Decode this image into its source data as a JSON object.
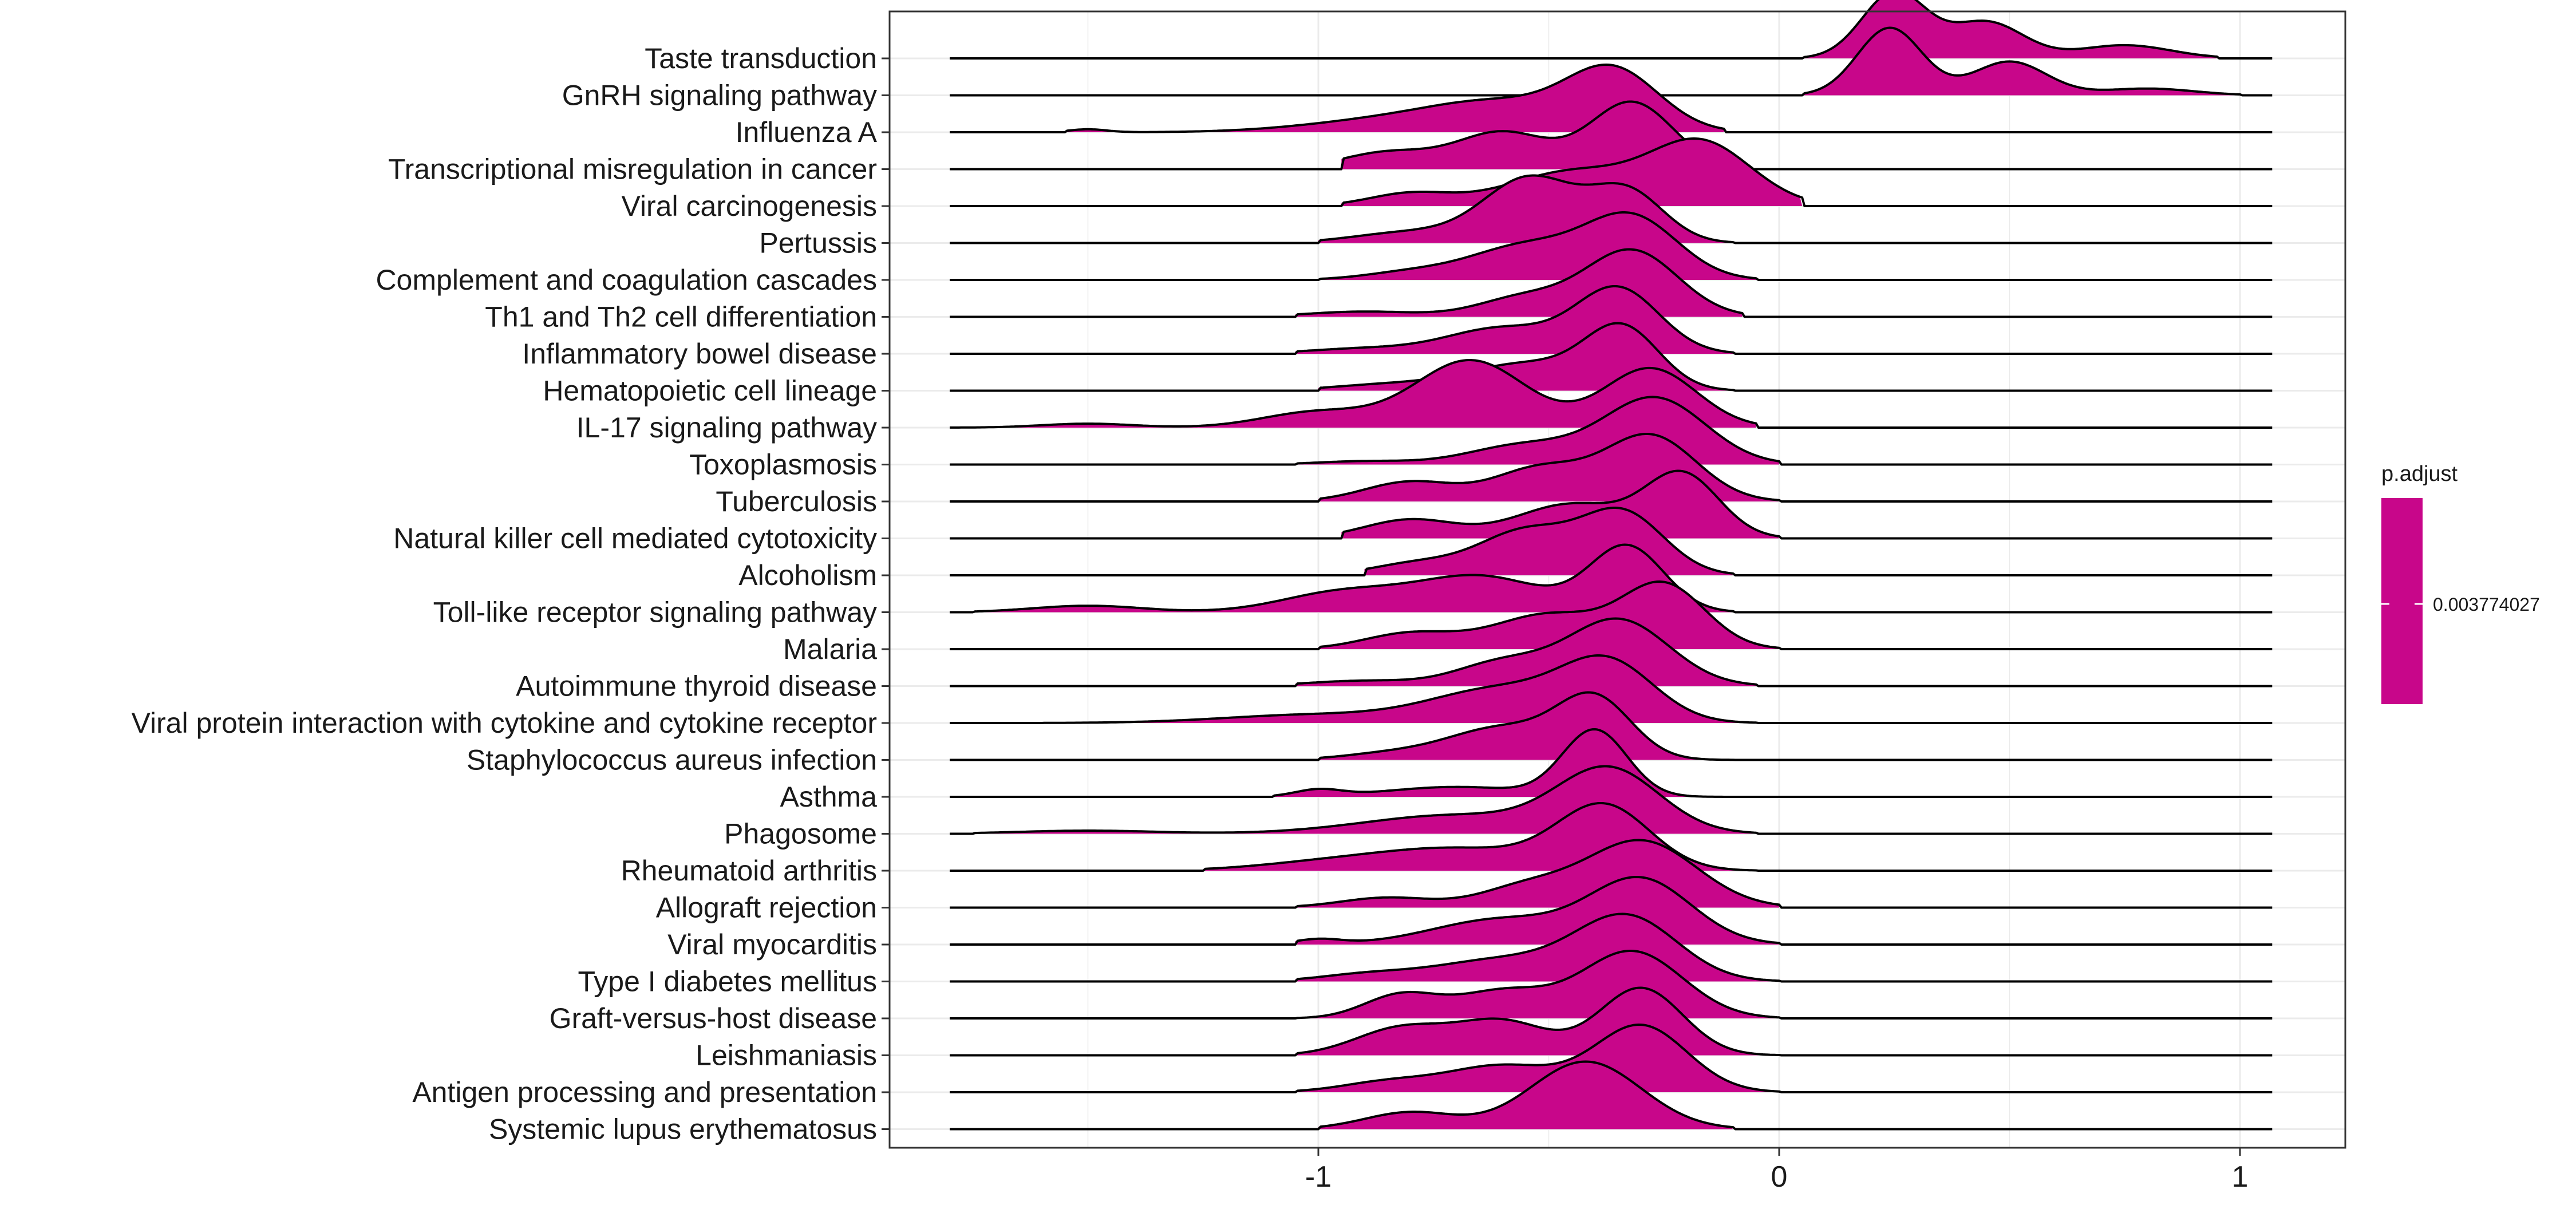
{
  "colors": {
    "fill": "#c8068a",
    "line": "#000000",
    "grid": "#ebebeb",
    "panel_border": "#333333",
    "background": "#ffffff"
  },
  "legend": {
    "title": "p.adjust",
    "label": "0.003774027",
    "color": "#c8068a",
    "placement": "right"
  },
  "chart_data": {
    "type": "ridgeline",
    "title": "",
    "xlabel": "",
    "ylabel": "",
    "xlim": [
      -1.95,
      1.2
    ],
    "x_ticks": [
      -1,
      0,
      1
    ],
    "x_tick_labels": [
      "-1",
      "0",
      "1"
    ],
    "grid": true,
    "categories": [
      "Taste transduction",
      "GnRH signaling pathway",
      "Influenza A",
      "Transcriptional misregulation in cancer",
      "Viral carcinogenesis",
      "Pertussis",
      "Complement and coagulation cascades",
      "Th1 and Th2 cell differentiation",
      "Inflammatory bowel disease",
      "Hematopoietic cell lineage",
      "IL-17 signaling pathway",
      "Toxoplasmosis",
      "Tuberculosis",
      "Natural killer cell mediated cytotoxicity",
      "Alcoholism",
      "Toll-like receptor signaling pathway",
      "Malaria",
      "Autoimmune thyroid disease",
      "Viral protein interaction with cytokine and cytokine receptor",
      "Staphylococcus aureus infection",
      "Asthma",
      "Phagosome",
      "Rheumatoid arthritis",
      "Allograft rejection",
      "Viral myocarditis",
      "Type I diabetes mellitus",
      "Graft-versus-host disease",
      "Leishmaniasis",
      "Antigen processing and presentation",
      "Systemic lupus erythematosus"
    ],
    "line_range": [
      -1.8,
      1.07
    ],
    "series": [
      {
        "range": [
          0.05,
          0.95
        ],
        "peaks": [
          [
            0.25,
            0.07,
            1.0
          ],
          [
            0.45,
            0.08,
            0.55
          ],
          [
            0.75,
            0.1,
            0.2
          ]
        ]
      },
      {
        "range": [
          0.05,
          1.0
        ],
        "peaks": [
          [
            0.24,
            0.07,
            1.0
          ],
          [
            0.5,
            0.08,
            0.5
          ],
          [
            0.8,
            0.1,
            0.1
          ]
        ]
      },
      {
        "range": [
          -1.55,
          -0.12
        ],
        "peaks": [
          [
            -0.36,
            0.1,
            1.0
          ],
          [
            -0.6,
            0.15,
            0.45
          ],
          [
            -0.85,
            0.18,
            0.2
          ],
          [
            -1.5,
            0.04,
            0.05
          ]
        ]
      },
      {
        "range": [
          -0.95,
          -0.12
        ],
        "peaks": [
          [
            -0.32,
            0.09,
            1.0
          ],
          [
            -0.6,
            0.1,
            0.55
          ],
          [
            -0.85,
            0.1,
            0.25
          ]
        ]
      },
      {
        "range": [
          -0.95,
          0.05
        ],
        "peaks": [
          [
            -0.17,
            0.11,
            1.0
          ],
          [
            -0.45,
            0.14,
            0.55
          ],
          [
            -0.8,
            0.09,
            0.2
          ]
        ]
      },
      {
        "range": [
          -1.0,
          -0.1
        ],
        "peaks": [
          [
            -0.54,
            0.1,
            0.9
          ],
          [
            -0.33,
            0.08,
            0.7
          ],
          [
            -0.8,
            0.12,
            0.15
          ]
        ]
      },
      {
        "range": [
          -1.0,
          -0.05
        ],
        "peaks": [
          [
            -0.32,
            0.1,
            1.0
          ],
          [
            -0.55,
            0.12,
            0.55
          ],
          [
            -0.8,
            0.1,
            0.12
          ]
        ]
      },
      {
        "range": [
          -1.05,
          -0.08
        ],
        "peaks": [
          [
            -0.32,
            0.1,
            1.0
          ],
          [
            -0.55,
            0.1,
            0.3
          ],
          [
            -0.9,
            0.12,
            0.08
          ]
        ]
      },
      {
        "range": [
          -1.05,
          -0.1
        ],
        "peaks": [
          [
            -0.35,
            0.09,
            1.0
          ],
          [
            -0.6,
            0.12,
            0.4
          ],
          [
            -0.9,
            0.12,
            0.08
          ]
        ]
      },
      {
        "range": [
          -1.0,
          -0.1
        ],
        "peaks": [
          [
            -0.34,
            0.08,
            1.0
          ],
          [
            -0.55,
            0.13,
            0.45
          ],
          [
            -0.85,
            0.12,
            0.1
          ]
        ]
      },
      {
        "range": [
          -1.8,
          -0.05
        ],
        "peaks": [
          [
            -0.67,
            0.12,
            0.85
          ],
          [
            -0.28,
            0.1,
            0.75
          ],
          [
            -1.0,
            0.12,
            0.2
          ],
          [
            -1.5,
            0.1,
            0.05
          ]
        ]
      },
      {
        "range": [
          -1.05,
          0.0
        ],
        "peaks": [
          [
            -0.27,
            0.11,
            1.0
          ],
          [
            -0.55,
            0.12,
            0.3
          ],
          [
            -0.9,
            0.1,
            0.05
          ]
        ]
      },
      {
        "range": [
          -1.0,
          0.0
        ],
        "peaks": [
          [
            -0.28,
            0.1,
            1.0
          ],
          [
            -0.52,
            0.1,
            0.5
          ],
          [
            -0.8,
            0.1,
            0.3
          ]
        ]
      },
      {
        "range": [
          -0.95,
          0.0
        ],
        "peaks": [
          [
            -0.21,
            0.08,
            1.0
          ],
          [
            -0.45,
            0.12,
            0.55
          ],
          [
            -0.8,
            0.1,
            0.3
          ]
        ]
      },
      {
        "range": [
          -0.9,
          -0.1
        ],
        "peaks": [
          [
            -0.34,
            0.09,
            1.0
          ],
          [
            -0.55,
            0.1,
            0.7
          ],
          [
            -0.78,
            0.1,
            0.2
          ]
        ]
      },
      {
        "range": [
          -1.75,
          -0.1
        ],
        "peaks": [
          [
            -0.33,
            0.08,
            1.0
          ],
          [
            -0.65,
            0.14,
            0.55
          ],
          [
            -0.95,
            0.13,
            0.3
          ],
          [
            -1.5,
            0.12,
            0.1
          ]
        ]
      },
      {
        "range": [
          -1.0,
          0.0
        ],
        "peaks": [
          [
            -0.25,
            0.09,
            1.0
          ],
          [
            -0.5,
            0.12,
            0.55
          ],
          [
            -0.8,
            0.1,
            0.25
          ]
        ]
      },
      {
        "range": [
          -1.05,
          -0.05
        ],
        "peaks": [
          [
            -0.35,
            0.11,
            1.0
          ],
          [
            -0.6,
            0.1,
            0.35
          ],
          [
            -0.9,
            0.12,
            0.08
          ]
        ]
      },
      {
        "range": [
          -1.6,
          -0.05
        ],
        "peaks": [
          [
            -0.37,
            0.1,
            1.0
          ],
          [
            -0.6,
            0.15,
            0.6
          ],
          [
            -1.0,
            0.2,
            0.15
          ]
        ]
      },
      {
        "range": [
          -1.0,
          -0.1
        ],
        "peaks": [
          [
            -0.4,
            0.08,
            1.0
          ],
          [
            -0.6,
            0.12,
            0.55
          ],
          [
            -0.85,
            0.1,
            0.1
          ]
        ]
      },
      {
        "range": [
          -1.1,
          -0.1
        ],
        "peaks": [
          [
            -0.4,
            0.07,
            1.0
          ],
          [
            -1.0,
            0.05,
            0.1
          ],
          [
            -0.7,
            0.15,
            0.15
          ]
        ]
      },
      {
        "range": [
          -1.75,
          -0.05
        ],
        "peaks": [
          [
            -0.37,
            0.11,
            1.0
          ],
          [
            -0.7,
            0.2,
            0.3
          ],
          [
            -1.5,
            0.15,
            0.05
          ]
        ]
      },
      {
        "range": [
          -1.25,
          -0.05
        ],
        "peaks": [
          [
            -0.38,
            0.1,
            1.0
          ],
          [
            -0.7,
            0.18,
            0.35
          ],
          [
            -1.0,
            0.15,
            0.1
          ]
        ]
      },
      {
        "range": [
          -1.05,
          0.0
        ],
        "peaks": [
          [
            -0.3,
            0.12,
            1.0
          ],
          [
            -0.55,
            0.1,
            0.3
          ],
          [
            -0.85,
            0.1,
            0.15
          ]
        ]
      },
      {
        "range": [
          -1.05,
          0.0
        ],
        "peaks": [
          [
            -0.3,
            0.11,
            1.0
          ],
          [
            -0.6,
            0.15,
            0.4
          ],
          [
            -1.0,
            0.05,
            0.08
          ]
        ]
      },
      {
        "range": [
          -1.05,
          0.0
        ],
        "peaks": [
          [
            -0.33,
            0.11,
            1.0
          ],
          [
            -0.6,
            0.15,
            0.35
          ],
          [
            -0.9,
            0.1,
            0.1
          ]
        ]
      },
      {
        "range": [
          -1.05,
          0.0
        ],
        "peaks": [
          [
            -0.32,
            0.11,
            1.0
          ],
          [
            -0.6,
            0.1,
            0.4
          ],
          [
            -0.82,
            0.08,
            0.35
          ]
        ]
      },
      {
        "range": [
          -1.05,
          0.0
        ],
        "peaks": [
          [
            -0.3,
            0.09,
            1.0
          ],
          [
            -0.6,
            0.1,
            0.5
          ],
          [
            -0.82,
            0.1,
            0.4
          ]
        ]
      },
      {
        "range": [
          -1.05,
          0.0
        ],
        "peaks": [
          [
            -0.3,
            0.1,
            1.0
          ],
          [
            -0.6,
            0.12,
            0.4
          ],
          [
            -0.85,
            0.1,
            0.15
          ]
        ]
      },
      {
        "range": [
          -1.0,
          -0.1
        ],
        "peaks": [
          [
            -0.42,
            0.12,
            1.0
          ],
          [
            -0.8,
            0.1,
            0.25
          ]
        ]
      }
    ]
  }
}
